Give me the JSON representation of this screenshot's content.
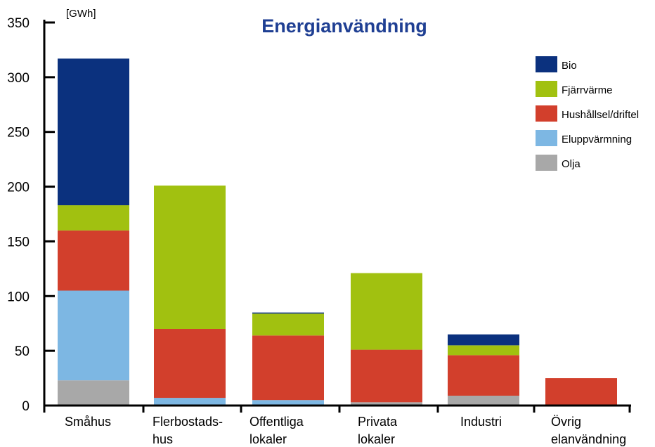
{
  "chart_data": {
    "type": "bar",
    "stacked": true,
    "title": "Energianvändning",
    "unit": "[GWh]",
    "xlabel": "",
    "ylabel": "",
    "ylim": [
      0,
      350
    ],
    "yticks": [
      0,
      50,
      100,
      150,
      200,
      250,
      300,
      350
    ],
    "grid": false,
    "legend_position": "top-right",
    "categories": [
      [
        "Småhus"
      ],
      [
        "Flerbostads-",
        "hus"
      ],
      [
        "Offentliga",
        "lokaler"
      ],
      [
        "Privata",
        "lokaler"
      ],
      [
        "Industri"
      ],
      [
        "Övrig",
        "elanvändning"
      ]
    ],
    "series": [
      {
        "name": "Olja",
        "color": "#a8a8a8",
        "values": [
          23,
          0,
          0,
          3,
          9,
          0
        ]
      },
      {
        "name": "Eluppvärmning",
        "color": "#7db7e3",
        "values": [
          82,
          7,
          5,
          0,
          0,
          0
        ]
      },
      {
        "name": "Hushållsel/driftel",
        "color": "#d23f2c",
        "values": [
          55,
          63,
          59,
          48,
          37,
          25
        ]
      },
      {
        "name": "Fjärrvärme",
        "color": "#a1c110",
        "values": [
          23,
          131,
          20,
          70,
          9,
          0
        ]
      },
      {
        "name": "Bio",
        "color": "#0b317e",
        "values": [
          134,
          0,
          1,
          0,
          10,
          0
        ]
      }
    ],
    "legend_order": [
      "Bio",
      "Fjärrvärme",
      "Hushållsel/driftel",
      "Eluppvärmning",
      "Olja"
    ]
  }
}
